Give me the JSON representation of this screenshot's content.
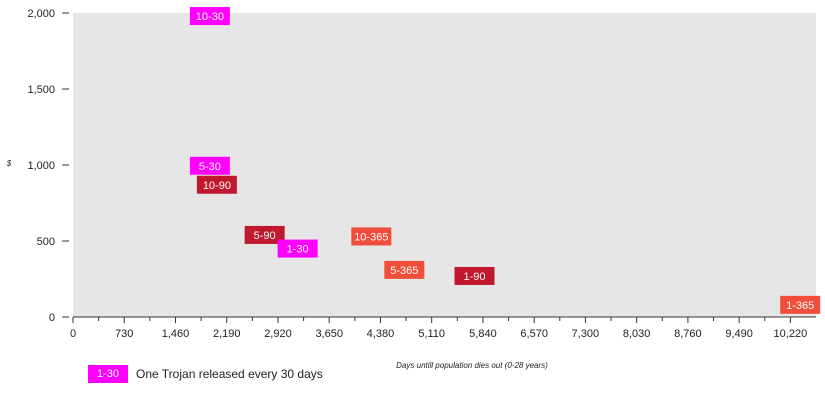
{
  "chart_data": {
    "type": "scatter",
    "title": "",
    "xlabel": "Days untill population dies out (0-28 years)",
    "ylabel": "$",
    "xlim": [
      0,
      10585
    ],
    "ylim": [
      0,
      2000
    ],
    "xticks": [
      "0",
      "730",
      "1,460",
      "2,190",
      "2,920",
      "3,650",
      "4,380",
      "5,110",
      "5,840",
      "6,570",
      "7,300",
      "8,030",
      "8,760",
      "9,490",
      "10,220"
    ],
    "yticks": [
      "0",
      "500",
      "1,000",
      "1,500",
      "2,000"
    ],
    "grid": false,
    "background": "#e6e6e6",
    "points": [
      {
        "label": "10-30",
        "x": 1950,
        "y": 1980,
        "color": "#ff00ff"
      },
      {
        "label": "5-30",
        "x": 1950,
        "y": 995,
        "color": "#ff00ff"
      },
      {
        "label": "10-90",
        "x": 2050,
        "y": 870,
        "color": "#c0192e"
      },
      {
        "label": "5-90",
        "x": 2730,
        "y": 540,
        "color": "#c0192e"
      },
      {
        "label": "1-30",
        "x": 3200,
        "y": 450,
        "color": "#ff00ff"
      },
      {
        "label": "10-365",
        "x": 4250,
        "y": 530,
        "color": "#f04e3a"
      },
      {
        "label": "5-365",
        "x": 4720,
        "y": 310,
        "color": "#f04e3a"
      },
      {
        "label": "1-90",
        "x": 5720,
        "y": 270,
        "color": "#c0192e"
      },
      {
        "label": "1-365",
        "x": 10360,
        "y": 80,
        "color": "#f04e3a"
      }
    ],
    "legend": {
      "position": "bottom-left",
      "swatch_label": "1-30",
      "swatch_color": "#ff00ff",
      "text": "One Trojan released every 30 days"
    }
  }
}
